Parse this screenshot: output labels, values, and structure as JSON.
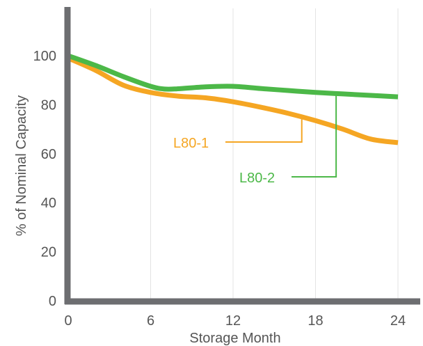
{
  "chart_data": {
    "type": "line",
    "title": "",
    "xlabel": "Storage Month",
    "ylabel": "% of Nominal Capacity",
    "xlim": [
      0,
      24
    ],
    "ylim": [
      0,
      110
    ],
    "x_ticks": [
      0,
      6,
      12,
      18,
      24
    ],
    "y_ticks": [
      0,
      20,
      40,
      60,
      80,
      100
    ],
    "grid": "vertical",
    "legend": "callout labels",
    "series": [
      {
        "name": "L80-1",
        "color": "#f5a623",
        "x": [
          0,
          2,
          4,
          6,
          8,
          10,
          12,
          14,
          16,
          18,
          20,
          22,
          24
        ],
        "y": [
          99,
          94,
          88,
          85,
          83.5,
          82.8,
          81.2,
          79,
          76.5,
          73.5,
          70,
          66,
          64.5
        ]
      },
      {
        "name": "L80-2",
        "color": "#4cb848",
        "x": [
          0,
          2,
          4,
          6,
          7,
          8,
          10,
          12,
          14,
          16,
          18,
          20,
          22,
          24
        ],
        "y": [
          100,
          96,
          91.5,
          87.5,
          86.4,
          86.5,
          87.3,
          87.5,
          86.6,
          85.8,
          85,
          84.4,
          83.8,
          83.2
        ]
      }
    ]
  }
}
